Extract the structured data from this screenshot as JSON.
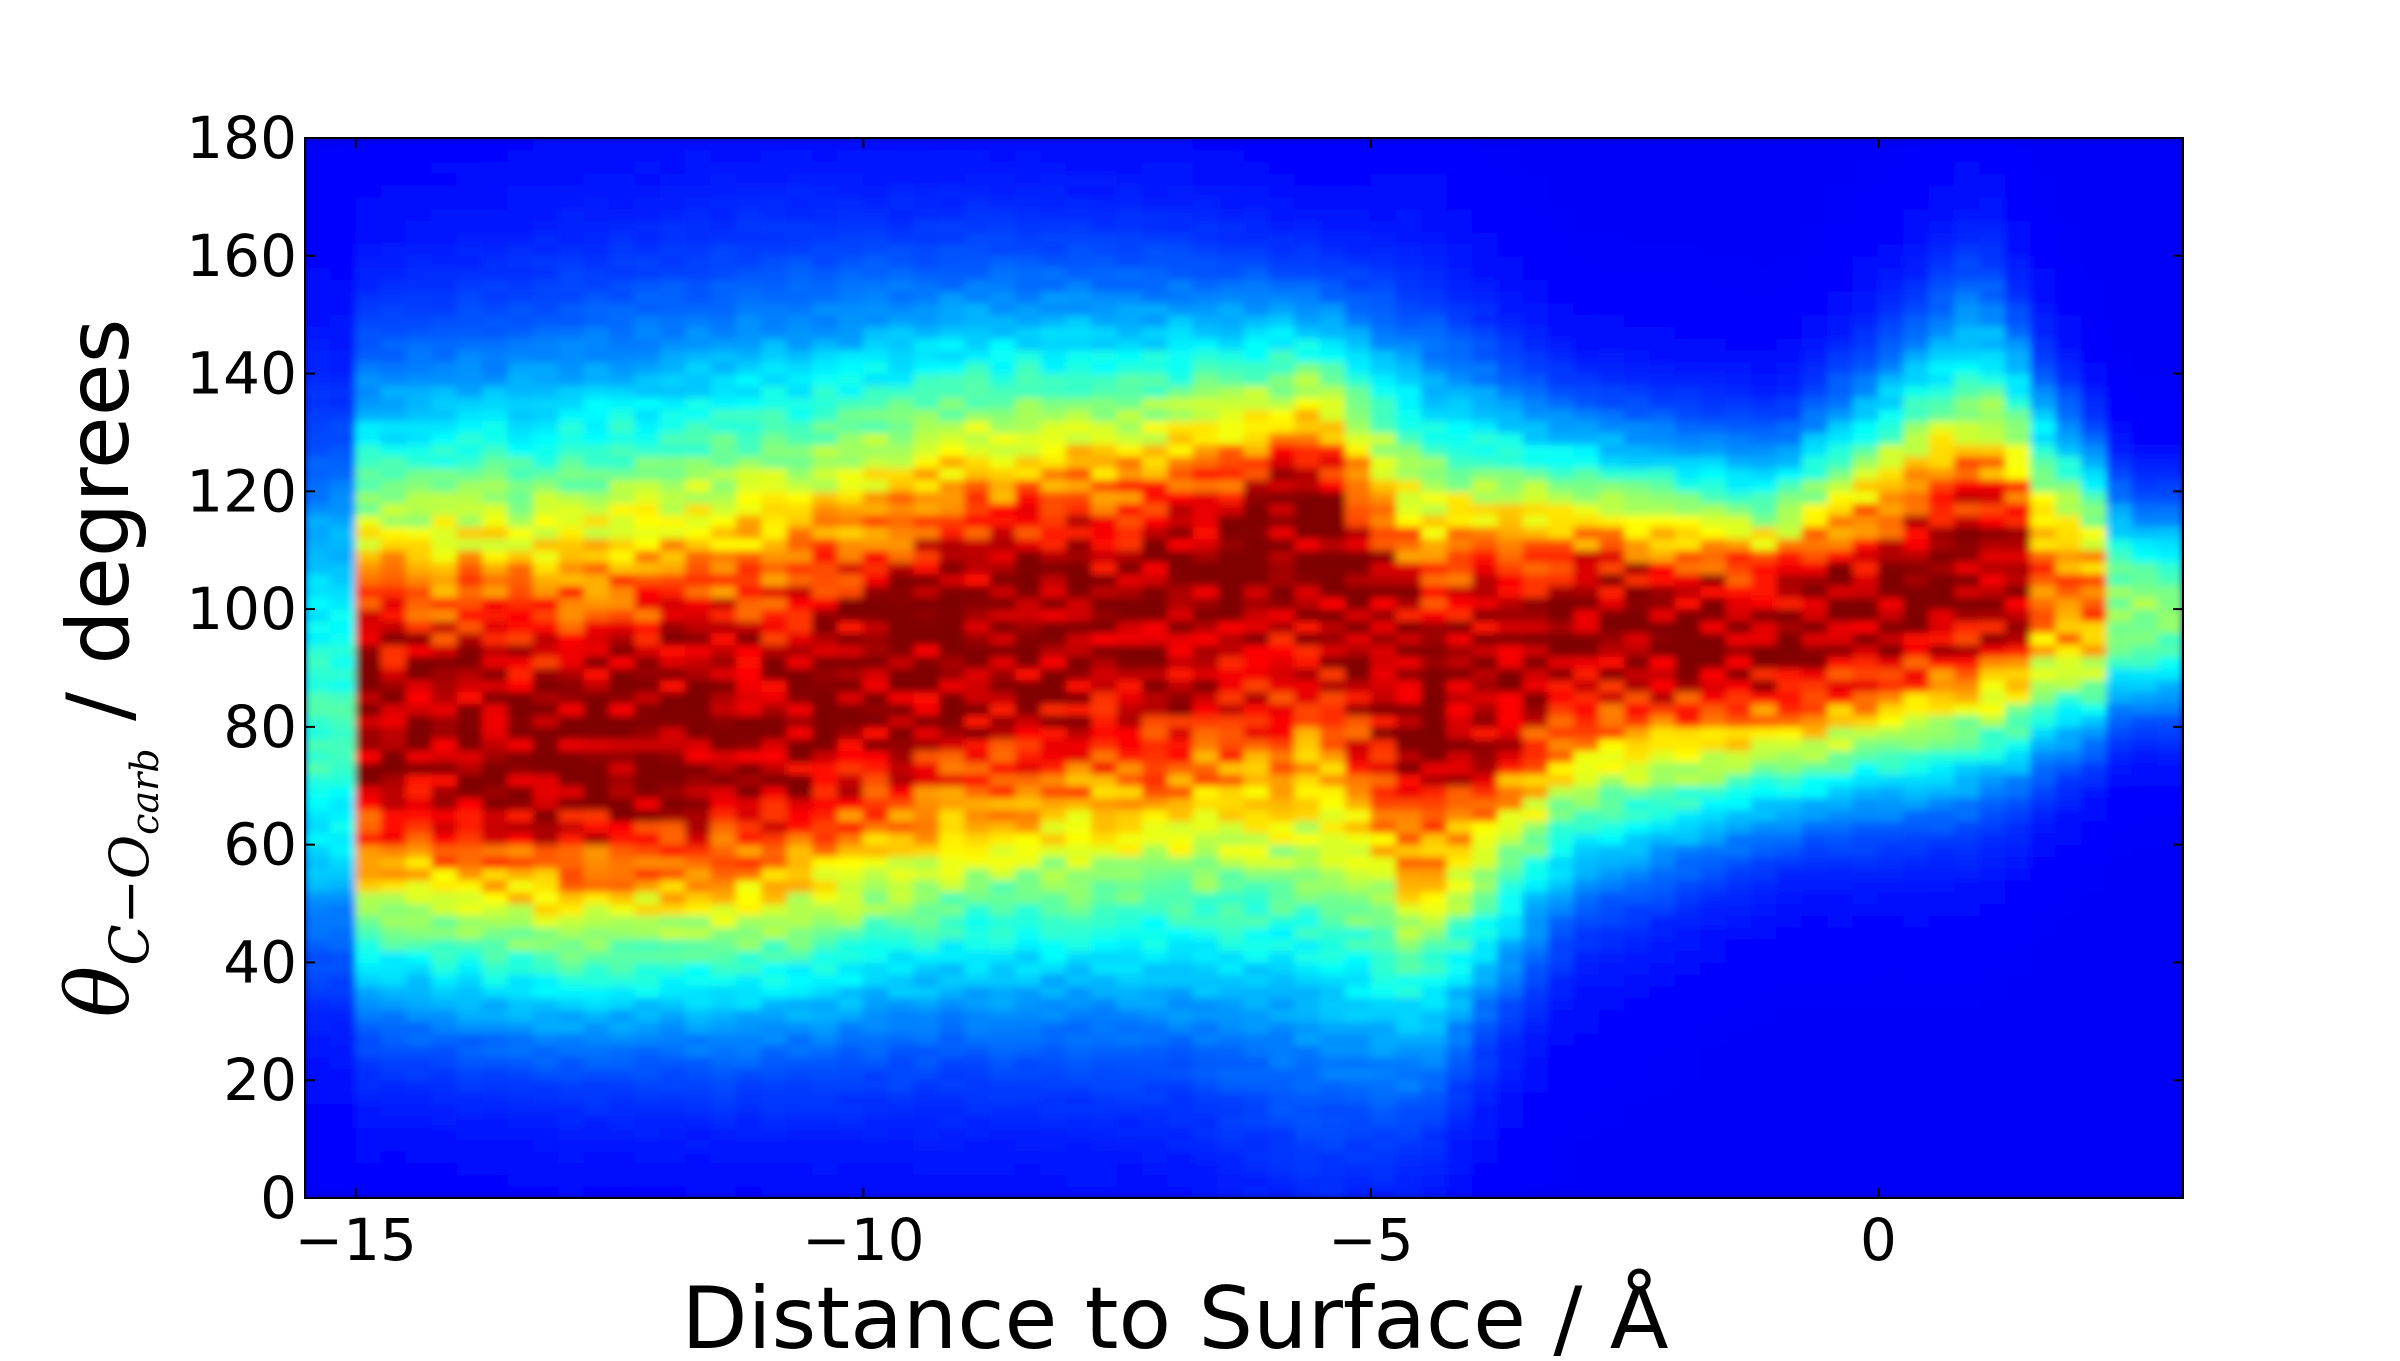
{
  "chart_data": {
    "type": "heatmap",
    "title": "",
    "xlabel": "Distance to Surface / Å",
    "ylabel": {
      "symbol": "θ",
      "subscript_main": "C−O",
      "subscript_sub": "carb",
      "units": " / degrees"
    },
    "xlim": [
      -15.5,
      3.0
    ],
    "ylim": [
      0,
      180
    ],
    "x_ticks": [
      -15,
      -10,
      -5,
      0
    ],
    "x_tick_labels": [
      "−15",
      "−10",
      "−5",
      "0"
    ],
    "y_ticks": [
      0,
      20,
      40,
      60,
      80,
      100,
      120,
      140,
      160,
      180
    ],
    "y_tick_labels": [
      "0",
      "20",
      "40",
      "60",
      "80",
      "100",
      "120",
      "140",
      "160",
      "180"
    ],
    "colormap": "jet",
    "grid": false,
    "colorbar": false,
    "density_ridge": [
      {
        "x": -15.0,
        "center": 80,
        "low": 35,
        "high": 135
      },
      {
        "x": -13.0,
        "center": 75,
        "low": 30,
        "high": 140
      },
      {
        "x": -11.0,
        "center": 78,
        "low": 30,
        "high": 145
      },
      {
        "x": -9.0,
        "center": 95,
        "low": 35,
        "high": 150
      },
      {
        "x": -7.0,
        "center": 100,
        "low": 35,
        "high": 150
      },
      {
        "x": -5.5,
        "center": 115,
        "low": 30,
        "high": 150
      },
      {
        "x": -4.5,
        "center": 85,
        "low": 25,
        "high": 140
      },
      {
        "x": -3.0,
        "center": 98,
        "low": 55,
        "high": 130
      },
      {
        "x": -1.0,
        "center": 95,
        "low": 65,
        "high": 125
      },
      {
        "x": 1.0,
        "center": 105,
        "low": 70,
        "high": 150
      },
      {
        "x": 2.5,
        "center": 100,
        "low": 80,
        "high": 120
      }
    ]
  }
}
